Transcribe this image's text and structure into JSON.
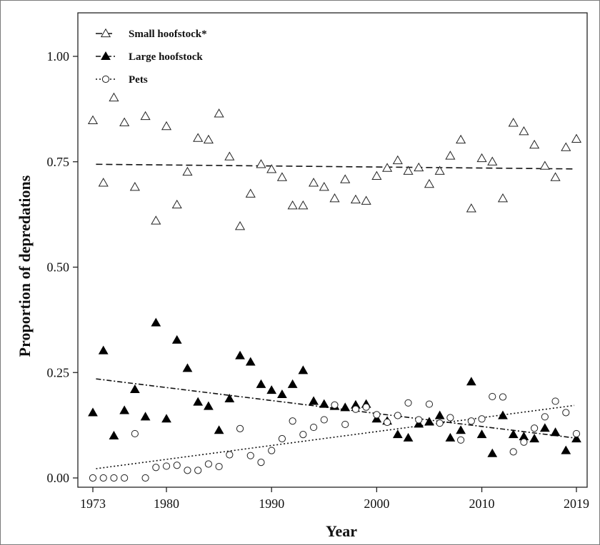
{
  "chart_data": {
    "type": "scatter",
    "xlabel": "Year",
    "ylabel": "Proportion of depredations",
    "xlim": [
      1973,
      2019
    ],
    "ylim": [
      0,
      1.0
    ],
    "x_ticks": [
      1973,
      1980,
      1990,
      2000,
      2010,
      2019
    ],
    "x_tick_labels": [
      "1973",
      "1980",
      "1990",
      "2000",
      "2010",
      "2019"
    ],
    "y_ticks": [
      0,
      0.25,
      0.5,
      0.75,
      1.0
    ],
    "y_tick_labels": [
      "0.00",
      "0.25",
      "0.50",
      "0.75",
      "1.00"
    ],
    "grid": false,
    "legend_position": "top-left",
    "series": [
      {
        "name": "Small hoofstock*",
        "marker": "open-triangle",
        "line_style": "dashed",
        "trend": [
          [
            1973.3,
            0.744
          ],
          [
            2018.8,
            0.733
          ]
        ],
        "points": [
          [
            1973,
            0.848
          ],
          [
            1974,
            0.7
          ],
          [
            1975,
            0.902
          ],
          [
            1976,
            0.843
          ],
          [
            1977,
            0.69
          ],
          [
            1978,
            0.858
          ],
          [
            1979,
            0.61
          ],
          [
            1980,
            0.834
          ],
          [
            1981,
            0.648
          ],
          [
            1982,
            0.726
          ],
          [
            1983,
            0.806
          ],
          [
            1984,
            0.802
          ],
          [
            1985,
            0.864
          ],
          [
            1986,
            0.762
          ],
          [
            1987,
            0.597
          ],
          [
            1988,
            0.674
          ],
          [
            1989,
            0.744
          ],
          [
            1990,
            0.732
          ],
          [
            1991,
            0.713
          ],
          [
            1992,
            0.646
          ],
          [
            1993,
            0.646
          ],
          [
            1994,
            0.7
          ],
          [
            1995,
            0.69
          ],
          [
            1996,
            0.663
          ],
          [
            1997,
            0.708
          ],
          [
            1998,
            0.66
          ],
          [
            1999,
            0.657
          ],
          [
            2000,
            0.716
          ],
          [
            2001,
            0.735
          ],
          [
            2002,
            0.753
          ],
          [
            2003,
            0.728
          ],
          [
            2004,
            0.736
          ],
          [
            2005,
            0.697
          ],
          [
            2006,
            0.728
          ],
          [
            2007,
            0.764
          ],
          [
            2008,
            0.802
          ],
          [
            2009,
            0.639
          ],
          [
            2010,
            0.758
          ],
          [
            2011,
            0.75
          ],
          [
            2012,
            0.663
          ],
          [
            2013,
            0.842
          ],
          [
            2014,
            0.822
          ],
          [
            2015,
            0.79
          ],
          [
            2016,
            0.74
          ],
          [
            2017,
            0.713
          ],
          [
            2018,
            0.784
          ],
          [
            2019,
            0.804
          ]
        ]
      },
      {
        "name": "Large hoofstock",
        "marker": "filled-triangle",
        "line_style": "dash-dot",
        "trend": [
          [
            1973.3,
            0.235
          ],
          [
            2018.8,
            0.095
          ]
        ],
        "points": [
          [
            1973,
            0.155
          ],
          [
            1974,
            0.302
          ],
          [
            1975,
            0.1
          ],
          [
            1976,
            0.16
          ],
          [
            1977,
            0.21
          ],
          [
            1978,
            0.145
          ],
          [
            1979,
            0.368
          ],
          [
            1980,
            0.14
          ],
          [
            1981,
            0.327
          ],
          [
            1982,
            0.26
          ],
          [
            1983,
            0.18
          ],
          [
            1984,
            0.17
          ],
          [
            1985,
            0.113
          ],
          [
            1986,
            0.188
          ],
          [
            1987,
            0.29
          ],
          [
            1988,
            0.275
          ],
          [
            1989,
            0.222
          ],
          [
            1990,
            0.208
          ],
          [
            1991,
            0.198
          ],
          [
            1992,
            0.222
          ],
          [
            1993,
            0.255
          ],
          [
            1994,
            0.182
          ],
          [
            1995,
            0.175
          ],
          [
            1996,
            0.17
          ],
          [
            1997,
            0.167
          ],
          [
            1998,
            0.173
          ],
          [
            1999,
            0.175
          ],
          [
            2000,
            0.14
          ],
          [
            2001,
            0.135
          ],
          [
            2002,
            0.103
          ],
          [
            2003,
            0.095
          ],
          [
            2004,
            0.128
          ],
          [
            2005,
            0.133
          ],
          [
            2006,
            0.148
          ],
          [
            2007,
            0.095
          ],
          [
            2008,
            0.113
          ],
          [
            2009,
            0.228
          ],
          [
            2010,
            0.103
          ],
          [
            2011,
            0.058
          ],
          [
            2012,
            0.148
          ],
          [
            2013,
            0.103
          ],
          [
            2014,
            0.098
          ],
          [
            2015,
            0.093
          ],
          [
            2016,
            0.118
          ],
          [
            2017,
            0.108
          ],
          [
            2018,
            0.065
          ],
          [
            2019,
            0.093
          ]
        ]
      },
      {
        "name": "Pets",
        "marker": "open-circle",
        "line_style": "dotted",
        "trend": [
          [
            1973.3,
            0.022
          ],
          [
            2018.8,
            0.172
          ]
        ],
        "points": [
          [
            1973,
            0.0
          ],
          [
            1974,
            0.0
          ],
          [
            1975,
            0.0
          ],
          [
            1976,
            0.0
          ],
          [
            1977,
            0.105
          ],
          [
            1978,
            0.0
          ],
          [
            1979,
            0.025
          ],
          [
            1980,
            0.028
          ],
          [
            1981,
            0.03
          ],
          [
            1982,
            0.018
          ],
          [
            1983,
            0.018
          ],
          [
            1984,
            0.033
          ],
          [
            1985,
            0.027
          ],
          [
            1986,
            0.055
          ],
          [
            1987,
            0.117
          ],
          [
            1988,
            0.053
          ],
          [
            1989,
            0.037
          ],
          [
            1990,
            0.065
          ],
          [
            1991,
            0.093
          ],
          [
            1992,
            0.135
          ],
          [
            1993,
            0.103
          ],
          [
            1994,
            0.12
          ],
          [
            1995,
            0.138
          ],
          [
            1996,
            0.173
          ],
          [
            1997,
            0.127
          ],
          [
            1998,
            0.163
          ],
          [
            1999,
            0.168
          ],
          [
            2000,
            0.15
          ],
          [
            2001,
            0.132
          ],
          [
            2002,
            0.148
          ],
          [
            2003,
            0.178
          ],
          [
            2004,
            0.138
          ],
          [
            2005,
            0.175
          ],
          [
            2006,
            0.13
          ],
          [
            2007,
            0.143
          ],
          [
            2008,
            0.09
          ],
          [
            2009,
            0.135
          ],
          [
            2010,
            0.14
          ],
          [
            2011,
            0.193
          ],
          [
            2012,
            0.192
          ],
          [
            2013,
            0.062
          ],
          [
            2014,
            0.085
          ],
          [
            2015,
            0.118
          ],
          [
            2016,
            0.145
          ],
          [
            2017,
            0.182
          ],
          [
            2018,
            0.155
          ],
          [
            2019,
            0.105
          ]
        ]
      }
    ]
  }
}
